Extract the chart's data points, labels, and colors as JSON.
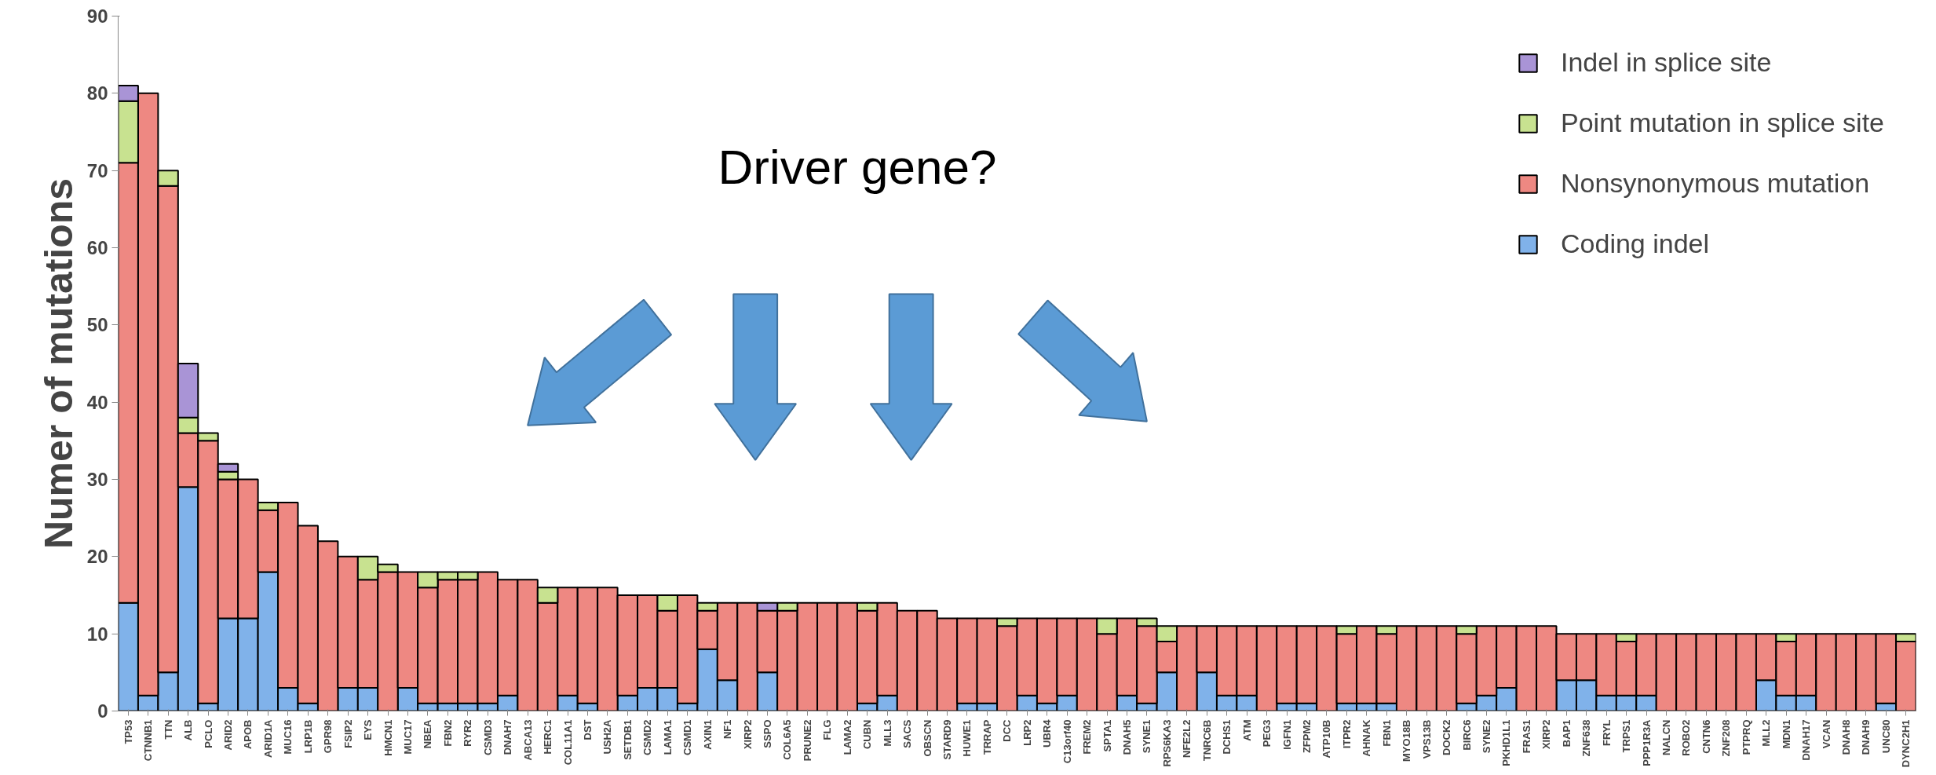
{
  "chart_data": {
    "type": "bar",
    "stacked": true,
    "ylabel": "Numer of mutations",
    "annotations": [
      "Driver gene?"
    ],
    "legend": "top right",
    "ylim": [
      0,
      90
    ],
    "yticks": [
      0,
      10,
      20,
      30,
      40,
      50,
      60,
      70,
      80,
      90
    ],
    "categories": [
      "TP53",
      "CTNNB1",
      "TTN",
      "ALB",
      "PCLO",
      "ARID2",
      "APOB",
      "ARID1A",
      "MUC16",
      "LRP1B",
      "GPR98",
      "FSIP2",
      "EYS",
      "HMCN1",
      "MUC17",
      "NBEA",
      "FBN2",
      "RYR2",
      "CSMD3",
      "DNAH7",
      "ABCA13",
      "HERC1",
      "COL11A1",
      "DST",
      "USH2A",
      "SETDB1",
      "CSMD2",
      "LAMA1",
      "CSMD1",
      "AXIN1",
      "NF1",
      "XIRP2",
      "SSPO",
      "COL6A5",
      "PRUNE2",
      "FLG",
      "LAMA2",
      "CUBN",
      "MLL3",
      "SACS",
      "OBSCN",
      "STARD9",
      "HUWE1",
      "TRRAP",
      "DCC",
      "LRP2",
      "UBR4",
      "C13orf40",
      "FREM2",
      "SPTA1",
      "DNAH5",
      "SYNE1",
      "RPS6KA3",
      "NFE2L2",
      "TNRC6B",
      "DCHS1",
      "ATM",
      "PEG3",
      "IGFN1",
      "ZFPM2",
      "ATP10B",
      "ITPR2",
      "AHNAK",
      "FBN1",
      "MYO18B",
      "VPS13B",
      "DOCK2",
      "BIRC6",
      "SYNE2",
      "PKHD1L1",
      "FRAS1",
      "XIRP2",
      "BAP1",
      "ZNF638",
      "FRYL",
      "TRPS1",
      "PPP1R3A",
      "NALCN",
      "ROBO2",
      "CNTN6",
      "ZNF208",
      "PTPRQ",
      "MLL2",
      "MDN1",
      "DNAH17",
      "VCAN",
      "DNAH8",
      "DNAH9",
      "UNC80",
      "DYNC2H1"
    ],
    "series": [
      {
        "name": "Coding indel",
        "color": "#80b2ea",
        "values": [
          14,
          2,
          5,
          29,
          1,
          12,
          12,
          18,
          3,
          1,
          0,
          3,
          3,
          0,
          3,
          1,
          1,
          1,
          1,
          2,
          0,
          0,
          2,
          1,
          0,
          2,
          3,
          3,
          1,
          8,
          4,
          0,
          5,
          0,
          0,
          0,
          0,
          1,
          2,
          0,
          0,
          0,
          1,
          1,
          0,
          2,
          1,
          2,
          0,
          0,
          2,
          1,
          5,
          0,
          5,
          2,
          2,
          0,
          1,
          1,
          0,
          1,
          1,
          1,
          0,
          0,
          0,
          1,
          2,
          3,
          0,
          0,
          4,
          4,
          2,
          2,
          2,
          0,
          0,
          0,
          0,
          0,
          4,
          2,
          2,
          0,
          0,
          0,
          1,
          0
        ]
      },
      {
        "name": "Nonsynonymous mutation",
        "color": "#ee8882",
        "values": [
          57,
          78,
          63,
          7,
          34,
          18,
          18,
          8,
          24,
          23,
          22,
          17,
          14,
          18,
          15,
          15,
          16,
          16,
          17,
          15,
          17,
          14,
          14,
          15,
          16,
          13,
          12,
          10,
          14,
          5,
          10,
          14,
          8,
          13,
          14,
          14,
          14,
          12,
          12,
          13,
          13,
          12,
          11,
          11,
          11,
          10,
          11,
          10,
          12,
          10,
          10,
          10,
          4,
          11,
          6,
          9,
          9,
          11,
          10,
          10,
          11,
          9,
          10,
          9,
          11,
          11,
          11,
          9,
          9,
          8,
          11,
          11,
          6,
          6,
          8,
          7,
          8,
          10,
          10,
          10,
          10,
          10,
          6,
          7,
          8,
          10,
          10,
          10,
          9,
          9
        ]
      },
      {
        "name": "Point mutation in splice site",
        "color": "#c8e290",
        "values": [
          8,
          0,
          2,
          2,
          1,
          1,
          0,
          1,
          0,
          0,
          0,
          0,
          3,
          1,
          0,
          2,
          1,
          1,
          0,
          0,
          0,
          2,
          0,
          0,
          0,
          0,
          0,
          2,
          0,
          1,
          0,
          0,
          0,
          1,
          0,
          0,
          0,
          1,
          0,
          0,
          0,
          0,
          0,
          0,
          1,
          0,
          0,
          0,
          0,
          2,
          0,
          1,
          2,
          0,
          0,
          0,
          0,
          0,
          0,
          0,
          0,
          1,
          0,
          1,
          0,
          0,
          0,
          1,
          0,
          0,
          0,
          0,
          0,
          0,
          0,
          1,
          0,
          0,
          0,
          0,
          0,
          0,
          0,
          1,
          0,
          0,
          0,
          0,
          0,
          1
        ]
      },
      {
        "name": "Indel in splice site",
        "color": "#a994d6",
        "values": [
          2,
          0,
          0,
          7,
          0,
          1,
          0,
          0,
          0,
          0,
          0,
          0,
          0,
          0,
          0,
          0,
          0,
          0,
          0,
          0,
          0,
          0,
          0,
          0,
          0,
          0,
          0,
          0,
          0,
          0,
          0,
          0,
          1,
          0,
          0,
          0,
          0,
          0,
          0,
          0,
          0,
          0,
          0,
          0,
          0,
          0,
          0,
          0,
          0,
          0,
          0,
          0,
          0,
          0,
          0,
          0,
          0,
          0,
          0,
          0,
          0,
          0,
          0,
          0,
          0,
          0,
          0,
          0,
          0,
          0,
          0,
          0,
          0,
          0,
          0,
          0,
          0,
          0,
          0,
          0,
          0,
          0,
          0,
          0,
          0,
          0,
          0,
          0,
          0,
          0
        ]
      }
    ]
  }
}
